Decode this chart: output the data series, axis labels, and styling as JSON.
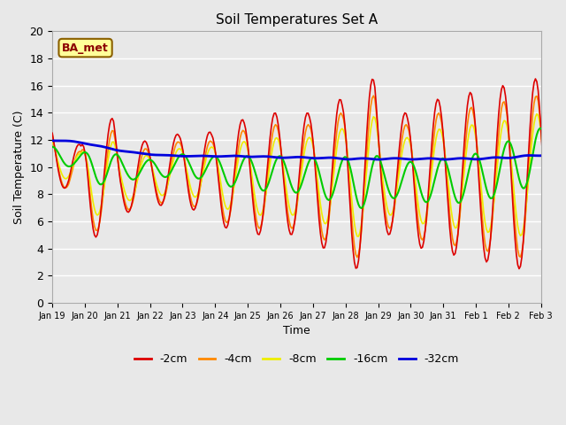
{
  "title": "Soil Temperatures Set A",
  "xlabel": "Time",
  "ylabel": "Soil Temperature (C)",
  "ylim": [
    0,
    20
  ],
  "yticks": [
    0,
    2,
    4,
    6,
    8,
    10,
    12,
    14,
    16,
    18,
    20
  ],
  "xtick_labels": [
    "Jan 19",
    "Jan 20",
    "Jan 21",
    "Jan 22",
    "Jan 23",
    "Jan 24",
    "Jan 25",
    "Jan 26",
    "Jan 27",
    "Jan 28",
    "Jan 29",
    "Jan 30",
    "Jan 31",
    "Feb 1",
    "Feb 2",
    "Feb 3"
  ],
  "annotation": "BA_met",
  "colors": {
    "-2cm": "#dd0000",
    "-4cm": "#ff8800",
    "-8cm": "#eeee00",
    "-16cm": "#00cc00",
    "-32cm": "#0000dd"
  },
  "line_widths": {
    "-2cm": 1.2,
    "-4cm": 1.2,
    "-8cm": 1.2,
    "-16cm": 1.5,
    "-32cm": 2.0
  },
  "bg_color": "#e8e8e8",
  "title_fontsize": 11,
  "legend_labels": [
    "-2cm",
    "-4cm",
    "-8cm",
    "-16cm",
    "-32cm"
  ]
}
